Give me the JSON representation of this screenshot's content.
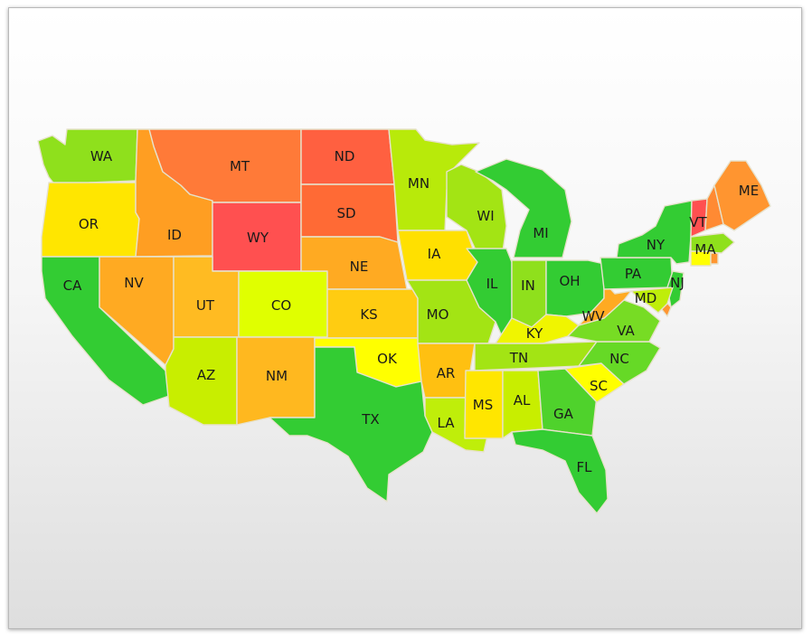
{
  "map": {
    "colors": {
      "green": "#33cc33",
      "light_green": "#99e619",
      "yellow_green": "#ccee00",
      "yellow": "#ffee00",
      "orange": "#ffa51f",
      "red_orange": "#ff7733",
      "red": "#ff5050",
      "border": "#e7e2cc"
    },
    "states": [
      {
        "id": "WA",
        "label": "WA",
        "color": "#8fe01c"
      },
      {
        "id": "OR",
        "label": "OR",
        "color": "#ffe600"
      },
      {
        "id": "CA",
        "label": "CA",
        "color": "#33cc33"
      },
      {
        "id": "ID",
        "label": "ID",
        "color": "#ff9e22"
      },
      {
        "id": "NV",
        "label": "NV",
        "color": "#ffaa22"
      },
      {
        "id": "MT",
        "label": "MT",
        "color": "#ff7a38"
      },
      {
        "id": "WY",
        "label": "WY",
        "color": "#ff5050"
      },
      {
        "id": "UT",
        "label": "UT",
        "color": "#ffbb22"
      },
      {
        "id": "CO",
        "label": "CO",
        "color": "#e0ff00"
      },
      {
        "id": "AZ",
        "label": "AZ",
        "color": "#c8ee00"
      },
      {
        "id": "NM",
        "label": "NM",
        "color": "#ffb81f"
      },
      {
        "id": "ND",
        "label": "ND",
        "color": "#ff6040"
      },
      {
        "id": "SD",
        "label": "SD",
        "color": "#ff6a35"
      },
      {
        "id": "NE",
        "label": "NE",
        "color": "#ffaa22"
      },
      {
        "id": "KS",
        "label": "KS",
        "color": "#ffcc11"
      },
      {
        "id": "OK",
        "label": "OK",
        "color": "#ffff00"
      },
      {
        "id": "TX",
        "label": "TX",
        "color": "#33cc33"
      },
      {
        "id": "MN",
        "label": "MN",
        "color": "#b8ea0a"
      },
      {
        "id": "IA",
        "label": "IA",
        "color": "#ffe000"
      },
      {
        "id": "MO",
        "label": "MO",
        "color": "#a3e414"
      },
      {
        "id": "AR",
        "label": "AR",
        "color": "#ffc011"
      },
      {
        "id": "LA",
        "label": "LA",
        "color": "#bfee0a"
      },
      {
        "id": "WI",
        "label": "WI",
        "color": "#a3e414"
      },
      {
        "id": "IL",
        "label": "IL",
        "color": "#33cc33"
      },
      {
        "id": "MI",
        "label": "MI",
        "color": "#33cc33"
      },
      {
        "id": "IN",
        "label": "IN",
        "color": "#8fe01c"
      },
      {
        "id": "OH",
        "label": "OH",
        "color": "#33cc33"
      },
      {
        "id": "KY",
        "label": "KY",
        "color": "#f0f500"
      },
      {
        "id": "TN",
        "label": "TN",
        "color": "#a3e414"
      },
      {
        "id": "MS",
        "label": "MS",
        "color": "#ffe600"
      },
      {
        "id": "AL",
        "label": "AL",
        "color": "#c8ee00"
      },
      {
        "id": "GA",
        "label": "GA",
        "color": "#4fd22c"
      },
      {
        "id": "FL",
        "label": "FL",
        "color": "#33cc33"
      },
      {
        "id": "SC",
        "label": "SC",
        "color": "#ffff00"
      },
      {
        "id": "NC",
        "label": "NC",
        "color": "#66d926"
      },
      {
        "id": "VA",
        "label": "VA",
        "color": "#77dc24"
      },
      {
        "id": "WV",
        "label": "WV",
        "color": "#ffaa22"
      },
      {
        "id": "PA",
        "label": "PA",
        "color": "#33cc33"
      },
      {
        "id": "NY",
        "label": "NY",
        "color": "#33cc33"
      },
      {
        "id": "VT",
        "label": "VT",
        "color": "#ff5050"
      },
      {
        "id": "NH",
        "label": "",
        "color": "#ff8a33"
      },
      {
        "id": "ME",
        "label": "ME",
        "color": "#ff9530"
      },
      {
        "id": "MA",
        "label": "MA",
        "color": "#8fe01c"
      },
      {
        "id": "CT",
        "label": "",
        "color": "#ffff00"
      },
      {
        "id": "RI",
        "label": "",
        "color": "#ff9530"
      },
      {
        "id": "NJ",
        "label": "NJ",
        "color": "#33cc33"
      },
      {
        "id": "DE",
        "label": "",
        "color": "#ff9530"
      },
      {
        "id": "MD",
        "label": "MD",
        "color": "#bfee0a"
      }
    ]
  }
}
